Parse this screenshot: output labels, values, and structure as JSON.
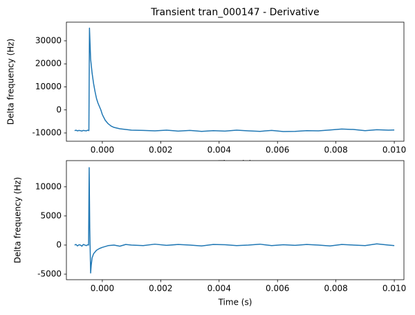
{
  "chart_data": [
    {
      "type": "line",
      "title": "Transient tran_000147 - Derivative",
      "xlabel": "Time (s)",
      "ylabel": "Delta frequency (Hz)",
      "color": "#1f77b4",
      "x": [
        -0.00095,
        -0.0009,
        -0.00085,
        -0.0008,
        -0.00075,
        -0.0007,
        -0.00065,
        -0.0006,
        -0.00055,
        -0.0005,
        -0.00046,
        -0.00044,
        -0.0004,
        -0.00035,
        -0.0003,
        -0.00025,
        -0.0002,
        -0.00015,
        -0.0001,
        -5e-05,
        0,
        0.0001,
        0.0002,
        0.0003,
        0.0004,
        0.0006,
        0.0008,
        0.001,
        0.0014,
        0.0018,
        0.0022,
        0.0026,
        0.003,
        0.0034,
        0.0038,
        0.0042,
        0.0046,
        0.005,
        0.0054,
        0.0058,
        0.0062,
        0.0066,
        0.007,
        0.0074,
        0.0078,
        0.0082,
        0.0086,
        0.009,
        0.0094,
        0.0098,
        0.01
      ],
      "values": [
        -9000,
        -8800,
        -9100,
        -8900,
        -9000,
        -9200,
        -8900,
        -9000,
        -9100,
        -8800,
        -9000,
        35500,
        22000,
        16000,
        11500,
        8000,
        5000,
        3000,
        1500,
        0,
        -2000,
        -4500,
        -6000,
        -7000,
        -7600,
        -8200,
        -8500,
        -8800,
        -8900,
        -9100,
        -8800,
        -9200,
        -8900,
        -9300,
        -9000,
        -9200,
        -8800,
        -9100,
        -9300,
        -8900,
        -9400,
        -9300,
        -9000,
        -9100,
        -8700,
        -8300,
        -8500,
        -9000,
        -8600,
        -8800,
        -8700
      ],
      "xlim": [
        -0.00123,
        0.01033
      ],
      "ylim": [
        -13600,
        38100
      ],
      "xticks": [
        {
          "value": 0,
          "label": "0.000"
        },
        {
          "value": 0.002,
          "label": "0.002"
        },
        {
          "value": 0.004,
          "label": "0.004"
        },
        {
          "value": 0.006,
          "label": "0.006"
        },
        {
          "value": 0.008,
          "label": "0.008"
        },
        {
          "value": 0.01,
          "label": "0.010"
        }
      ],
      "yticks": [
        -10000,
        0,
        10000,
        20000,
        30000
      ]
    },
    {
      "type": "line",
      "xlabel": "Time (s)",
      "ylabel": "Delta frequency (Hz)",
      "color": "#1f77b4",
      "x": [
        -0.00095,
        -0.0009,
        -0.00085,
        -0.0008,
        -0.00075,
        -0.0007,
        -0.00065,
        -0.0006,
        -0.00055,
        -0.0005,
        -0.00047,
        -0.00045,
        -0.00043,
        -0.0004,
        -0.00038,
        -0.00035,
        -0.0003,
        -0.0002,
        -0.0001,
        0,
        0.0002,
        0.0004,
        0.0006,
        0.0008,
        0.001,
        0.0014,
        0.0018,
        0.0022,
        0.0026,
        0.003,
        0.0034,
        0.0038,
        0.0042,
        0.0046,
        0.005,
        0.0054,
        0.0058,
        0.0062,
        0.0066,
        0.007,
        0.0074,
        0.0078,
        0.0082,
        0.0086,
        0.009,
        0.0094,
        0.0098,
        0.01
      ],
      "values": [
        0,
        100,
        -150,
        50,
        0,
        -200,
        100,
        0,
        -100,
        50,
        0,
        13300,
        3000,
        -4800,
        -3500,
        -2200,
        -1500,
        -900,
        -600,
        -400,
        -100,
        0,
        -200,
        100,
        0,
        -100,
        150,
        -50,
        100,
        0,
        -150,
        100,
        50,
        -100,
        0,
        150,
        -100,
        50,
        -50,
        100,
        0,
        -150,
        100,
        0,
        -100,
        200,
        0,
        -100
      ],
      "xlim": [
        -0.00123,
        0.01033
      ],
      "ylim": [
        -5950,
        14500
      ],
      "xticks": [
        {
          "value": 0,
          "label": "0.000"
        },
        {
          "value": 0.002,
          "label": "0.002"
        },
        {
          "value": 0.004,
          "label": "0.004"
        },
        {
          "value": 0.006,
          "label": "0.006"
        },
        {
          "value": 0.008,
          "label": "0.008"
        },
        {
          "value": 0.01,
          "label": "0.010"
        }
      ],
      "yticks": [
        -5000,
        0,
        5000,
        10000
      ]
    }
  ]
}
